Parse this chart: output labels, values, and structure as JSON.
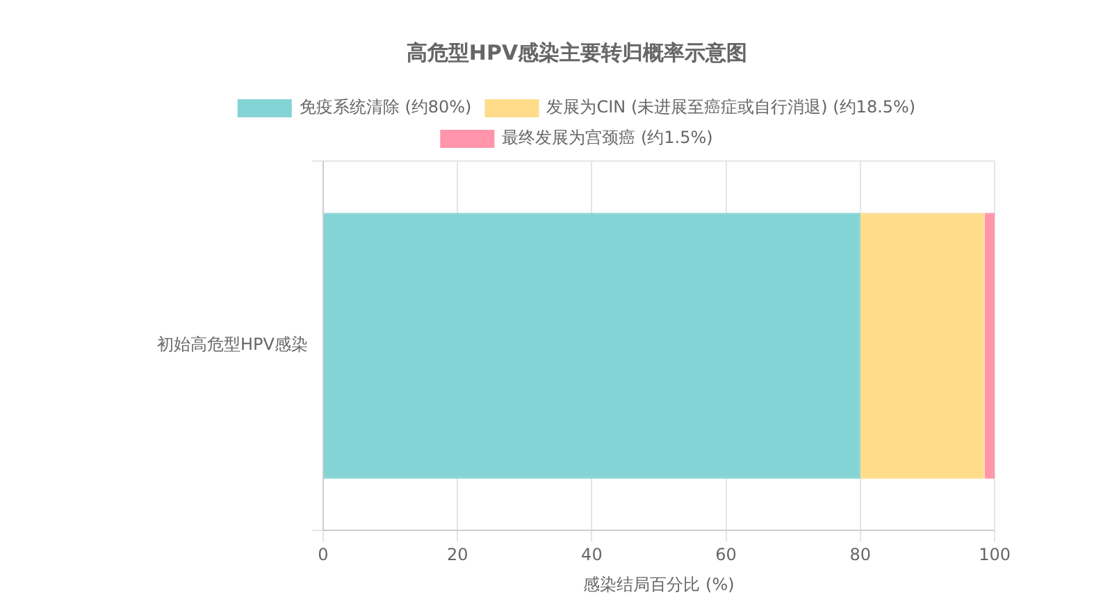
{
  "chart_data": {
    "type": "bar",
    "orientation": "horizontal",
    "stacked": true,
    "title": "高危型HPV感染主要转归概率示意图",
    "xlabel": "感染结局百分比 (%)",
    "categories": [
      "初始高危型HPV感染"
    ],
    "series": [
      {
        "name": "免疫系统清除 (约80%)",
        "color": "#84d3d5",
        "values": [
          80
        ]
      },
      {
        "name": "发展为CIN (未进展至癌症或自行消退) (约18.5%)",
        "color": "#ffdc8a",
        "values": [
          18.5
        ]
      },
      {
        "name": "最终发展为宫颈癌 (约1.5%)",
        "color": "#ff94aa",
        "values": [
          1.5
        ]
      }
    ],
    "xlim": [
      0,
      100
    ],
    "xticks": [
      0,
      20,
      40,
      60,
      80,
      100
    ],
    "grid": true,
    "legend": "top"
  }
}
